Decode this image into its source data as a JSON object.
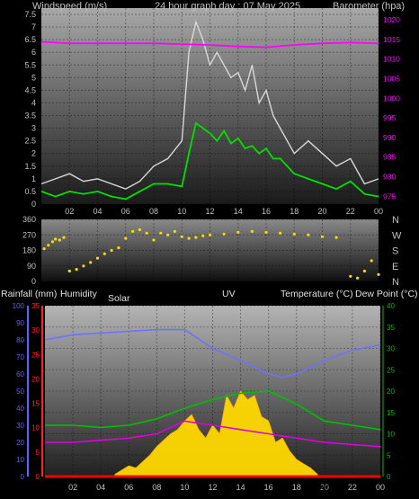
{
  "chart_data": [
    {
      "type": "line",
      "panel": "wind_barometer",
      "title": "24 hour graph day : 07 May 2025",
      "left_label": "Windspeed (m/s)",
      "right_label": "Barometer (hpa)",
      "x_ticks": [
        "02",
        "04",
        "06",
        "08",
        "10",
        "12",
        "14",
        "16",
        "18",
        "20",
        "22",
        "00"
      ],
      "ylim_left": [
        0,
        7.75
      ],
      "y_ticks_left": [
        "0",
        "0.5",
        "1",
        "1.5",
        "2",
        "2.5",
        "3",
        "3.5",
        "4",
        "4.5",
        "5",
        "5.5",
        "6",
        "6.5",
        "7",
        "7.5"
      ],
      "ylim_right": [
        973,
        1023
      ],
      "y_ticks_right": [
        "975",
        "980",
        "985",
        "990",
        "995",
        "1000",
        "1005",
        "1010",
        "1015",
        "1020"
      ],
      "series": [
        {
          "key": "gust",
          "color": "#d8d8d8",
          "x": [
            0,
            1,
            2,
            3,
            4,
            5,
            6,
            7,
            8,
            9,
            10,
            10.5,
            11,
            11.5,
            12,
            12.5,
            13,
            13.5,
            14,
            14.5,
            15,
            15.5,
            16,
            16.5,
            17,
            18,
            19,
            20,
            21,
            22,
            23,
            24
          ],
          "values": [
            0.8,
            1.0,
            1.2,
            0.9,
            1.0,
            0.8,
            0.6,
            0.9,
            1.5,
            1.8,
            2.5,
            6.0,
            7.2,
            6.5,
            5.5,
            6.0,
            5.5,
            5.0,
            5.2,
            4.5,
            5.5,
            4.0,
            4.5,
            3.5,
            3.0,
            2.0,
            2.5,
            2.0,
            1.5,
            1.8,
            0.8,
            1.0
          ]
        },
        {
          "key": "average",
          "color": "#00e000",
          "x": [
            0,
            1,
            2,
            3,
            4,
            5,
            6,
            7,
            8,
            9,
            10,
            10.5,
            11,
            11.5,
            12,
            12.5,
            13,
            13.5,
            14,
            14.5,
            15,
            15.5,
            16,
            16.5,
            17,
            18,
            19,
            20,
            21,
            22,
            23,
            24
          ],
          "values": [
            0.5,
            0.3,
            0.5,
            0.4,
            0.5,
            0.3,
            0.2,
            0.5,
            0.8,
            0.8,
            0.7,
            2.0,
            3.2,
            3.0,
            2.8,
            2.5,
            2.9,
            2.4,
            2.6,
            2.2,
            2.3,
            2.0,
            2.2,
            1.8,
            1.8,
            1.2,
            1.0,
            0.8,
            0.6,
            0.9,
            0.4,
            0.3
          ]
        },
        {
          "key": "barometer",
          "axis": "right",
          "color": "#ff00ff",
          "x": [
            0,
            2,
            4,
            6,
            8,
            10,
            12,
            14,
            16,
            18,
            20,
            22,
            24
          ],
          "values": [
            1014.4,
            1014.0,
            1014.0,
            1014.0,
            1014.0,
            1013.8,
            1013.6,
            1013.2,
            1013.0,
            1013.6,
            1014.0,
            1014.2,
            1014.0
          ]
        }
      ]
    },
    {
      "type": "scatter",
      "panel": "wind_direction",
      "y_ticks_left": [
        "0",
        "90",
        "180",
        "270",
        "360"
      ],
      "ylim_left": [
        0,
        360
      ],
      "y_ticks_right": [
        "N",
        "W",
        "S",
        "E",
        "N"
      ],
      "series": [
        {
          "key": "direction",
          "color": "#f0e000",
          "x": [
            0.2,
            0.5,
            0.8,
            1.0,
            1.3,
            1.6,
            2.0,
            2.5,
            3.0,
            3.5,
            4.0,
            4.5,
            5.0,
            5.5,
            6.0,
            6.5,
            7.0,
            7.5,
            8.0,
            8.5,
            9.0,
            9.5,
            10.0,
            10.5,
            11,
            11.5,
            12,
            13,
            14,
            15,
            16,
            17,
            18,
            19,
            20,
            21,
            22,
            22.5,
            23,
            23.5,
            24
          ],
          "values": [
            190,
            210,
            230,
            245,
            240,
            255,
            60,
            70,
            90,
            110,
            135,
            160,
            180,
            195,
            250,
            290,
            300,
            280,
            240,
            280,
            270,
            290,
            260,
            250,
            255,
            265,
            270,
            275,
            285,
            290,
            285,
            280,
            275,
            270,
            260,
            255,
            30,
            20,
            60,
            120,
            40
          ]
        }
      ]
    },
    {
      "type": "line",
      "panel": "rain_humidity_temperature",
      "labels": {
        "rainfall": "Rainfall (mm)",
        "humidity": "Humidity",
        "solar": "Solar",
        "uv": "UV",
        "temperature": "Temperature (°C)",
        "dew_point": "Dew Point (°C)"
      },
      "x_ticks": [
        "02",
        "04",
        "06",
        "08",
        "10",
        "12",
        "14",
        "16",
        "18",
        "20",
        "22",
        "00"
      ],
      "sun_label": "SunSet",
      "humidity_axis": {
        "ylim": [
          0,
          100
        ],
        "ticks": [
          "0",
          "10",
          "20",
          "30",
          "40",
          "50",
          "60",
          "70",
          "80",
          "90",
          "100"
        ]
      },
      "rainfall_axis": {
        "ylim": [
          0,
          35
        ],
        "ticks": [
          "0",
          "5",
          "10",
          "15",
          "20",
          "25",
          "30",
          "35"
        ]
      },
      "temperature_axis": {
        "ylim": [
          0,
          40
        ],
        "ticks": [
          "0",
          "5",
          "10",
          "15",
          "20",
          "25",
          "30",
          "35",
          "40"
        ]
      },
      "series": [
        {
          "key": "humidity",
          "axis": "humidity",
          "color": "#7070ff",
          "x": [
            0,
            2,
            4,
            6,
            8,
            10,
            12,
            14,
            16,
            17,
            18,
            20,
            22,
            24
          ],
          "values": [
            80,
            83,
            84,
            85,
            86,
            86,
            75,
            68,
            60,
            58,
            60,
            68,
            74,
            77
          ]
        },
        {
          "key": "temperature",
          "axis": "temperature",
          "color": "#00c000",
          "x": [
            0,
            2,
            4,
            6,
            8,
            10,
            12,
            14,
            16,
            18,
            20,
            22,
            24
          ],
          "values": [
            12,
            12,
            11.5,
            12,
            13.5,
            16,
            18,
            19.5,
            20,
            17,
            13,
            12,
            11
          ]
        },
        {
          "key": "dew_point",
          "axis": "temperature",
          "color": "#e000e0",
          "x": [
            0,
            2,
            4,
            6,
            8,
            10,
            12,
            14,
            16,
            18,
            20,
            22,
            24
          ],
          "values": [
            8,
            8,
            8.5,
            9,
            10,
            13,
            12,
            11,
            10,
            9,
            8,
            7.5,
            7
          ]
        },
        {
          "key": "uv",
          "axis": "temperature",
          "color": "#ff8c00",
          "x": [],
          "values": []
        },
        {
          "key": "rainfall",
          "axis": "rainfall",
          "color": "#ff0000",
          "x": [
            0,
            24
          ],
          "values": [
            0,
            0
          ]
        }
      ],
      "solar": {
        "color": "#ffd800",
        "x": [
          5.0,
          5.5,
          6.0,
          6.5,
          7.0,
          7.5,
          8.0,
          8.5,
          9.0,
          9.5,
          10.0,
          10.5,
          11.0,
          11.5,
          12.0,
          12.5,
          13.0,
          13.5,
          14.0,
          14.5,
          15.0,
          15.5,
          16.0,
          16.5,
          17.0,
          17.5,
          18.0,
          18.5,
          19.0,
          19.5
        ],
        "values": [
          0.5,
          1.5,
          2.5,
          2.0,
          3.5,
          5.0,
          7.0,
          8.5,
          10.0,
          11.0,
          13.0,
          14.5,
          11.0,
          9.0,
          12.0,
          10.0,
          19.0,
          16.0,
          20.0,
          18.0,
          19.0,
          14.0,
          13.0,
          8.0,
          9.0,
          6.0,
          4.0,
          3.0,
          2.0,
          0.5
        ]
      }
    }
  ]
}
